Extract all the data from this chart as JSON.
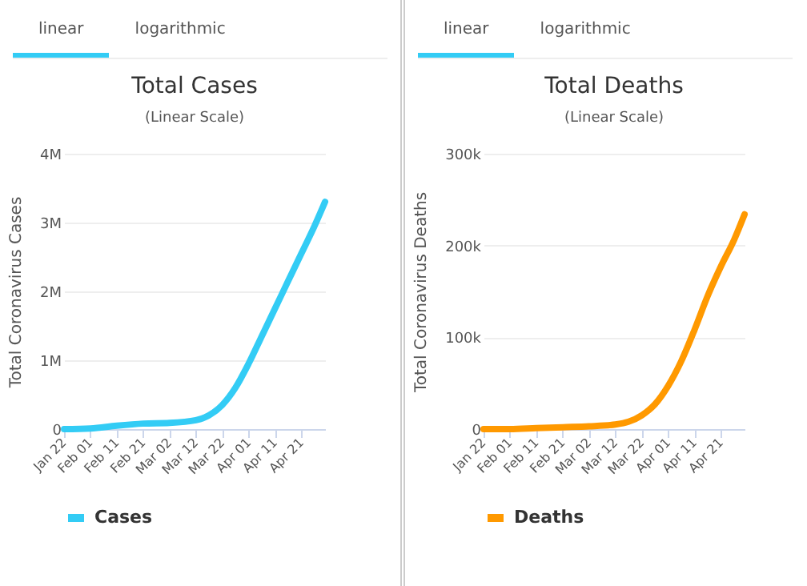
{
  "chart_data": [
    {
      "type": "line",
      "title": "Total Cases",
      "subtitle": "(Linear Scale)",
      "ylabel": "Total Coronavirus Cases",
      "annotations": [
        "linear",
        "logarithmic"
      ],
      "x": [
        "--01-22",
        "--02-01",
        "--02-11",
        "--02-21",
        "--03-02",
        "--03-12",
        "--03-17",
        "--03-22",
        "--03-27",
        "--04-01",
        "--04-06",
        "--04-11",
        "--04-16",
        "--04-21",
        "--04-26",
        "--04-30"
      ],
      "series": [
        {
          "name": "Cases",
          "color": "#33ccf5",
          "values": [
            0,
            10000,
            50000,
            80000,
            90000,
            130000,
            200000,
            350000,
            600000,
            950000,
            1350000,
            1750000,
            2150000,
            2550000,
            2950000,
            3300000
          ]
        }
      ],
      "xlim": [
        "--01-22",
        "--04-30"
      ],
      "xticks": [
        {
          "value": "--01-22",
          "label": "Jan 22"
        },
        {
          "value": "--02-01",
          "label": "Feb 01"
        },
        {
          "value": "--02-11",
          "label": "Feb 11"
        },
        {
          "value": "--02-21",
          "label": "Feb 21"
        },
        {
          "value": "--03-02",
          "label": "Mar 02"
        },
        {
          "value": "--03-12",
          "label": "Mar 12"
        },
        {
          "value": "--03-22",
          "label": "Mar 22"
        },
        {
          "value": "--04-01",
          "label": "Apr 01"
        },
        {
          "value": "--04-11",
          "label": "Apr 11"
        },
        {
          "value": "--04-21",
          "label": "Apr 21"
        }
      ],
      "ylim": [
        0,
        4000000
      ],
      "yticks": [
        0,
        {
          "value": 1000000,
          "label": "1M"
        },
        {
          "value": 2000000,
          "label": "2M"
        },
        {
          "value": 3000000,
          "label": "3M"
        },
        {
          "value": 4000000,
          "label": "4M"
        }
      ],
      "grid": "y",
      "legend": "bottom",
      "marker": "none"
    },
    {
      "type": "line",
      "title": "Total Deaths",
      "subtitle": "(Linear Scale)",
      "ylabel": "Total Coronavirus Deaths",
      "annotations": [
        "linear",
        "logarithmic"
      ],
      "x": [
        "--01-22",
        "--02-01",
        "--02-11",
        "--02-21",
        "--03-02",
        "--03-12",
        "--03-17",
        "--03-22",
        "--03-27",
        "--04-01",
        "--04-06",
        "--04-11",
        "--04-16",
        "--04-21",
        "--04-26",
        "--04-30"
      ],
      "series": [
        {
          "name": "Deaths",
          "color": "#ff9900",
          "values": [
            0,
            0,
            1000,
            2000,
            3000,
            5000,
            8000,
            15000,
            27000,
            47000,
            74000,
            108000,
            145000,
            177000,
            206000,
            234000
          ]
        }
      ],
      "xlim": [
        "--01-22",
        "--04-30"
      ],
      "xticks": [
        {
          "value": "--01-22",
          "label": "Jan 22"
        },
        {
          "value": "--02-01",
          "label": "Feb 01"
        },
        {
          "value": "--02-11",
          "label": "Feb 11"
        },
        {
          "value": "--02-21",
          "label": "Feb 21"
        },
        {
          "value": "--03-02",
          "label": "Mar 02"
        },
        {
          "value": "--03-12",
          "label": "Mar 12"
        },
        {
          "value": "--03-22",
          "label": "Mar 22"
        },
        {
          "value": "--04-01",
          "label": "Apr 01"
        },
        {
          "value": "--04-11",
          "label": "Apr 11"
        },
        {
          "value": "--04-21",
          "label": "Apr 21"
        }
      ],
      "ylim": [
        0,
        300000
      ],
      "yticks": [
        0,
        {
          "value": 100000,
          "label": "100k"
        },
        {
          "value": 200000,
          "label": "200k"
        },
        {
          "value": 300000,
          "label": "300k"
        }
      ],
      "grid": "y",
      "legend": "bottom",
      "marker": "none"
    }
  ]
}
